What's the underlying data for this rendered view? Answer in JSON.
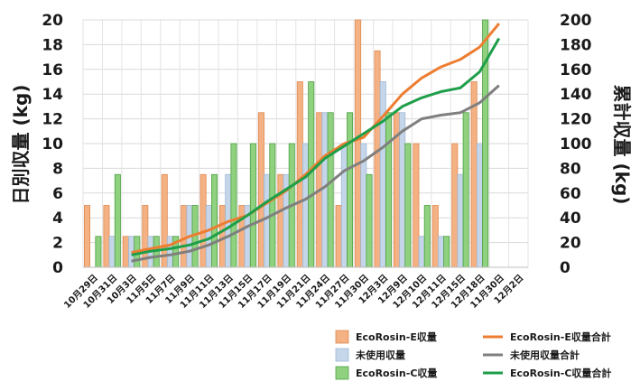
{
  "chart_data": {
    "type": "bar",
    "categories": [
      "10月29日",
      "10月31日",
      "10月3日",
      "11月5日",
      "11月7日",
      "11月9日",
      "11月11日",
      "11月13日",
      "11月15日",
      "11月17日",
      "11月19日",
      "11月21日",
      "11月24日",
      "11月27日",
      "11月30日",
      "12月3日",
      "12月9日",
      "12月10日",
      "12月11日",
      "12月15日",
      "12月18日",
      "11月30日",
      "12月2日"
    ],
    "ylabel": "日別収量 (kg)",
    "y2label": "累計収量 (kg)",
    "ylim": [
      0,
      20
    ],
    "y2lim": [
      0,
      200
    ],
    "yticks": [
      "0",
      "2",
      "4",
      "6",
      "8",
      "10",
      "12",
      "14",
      "16",
      "18",
      "20"
    ],
    "y2ticks": [
      "0",
      "20",
      "40",
      "60",
      "80",
      "100",
      "120",
      "140",
      "160",
      "180",
      "200"
    ],
    "grid": true,
    "legend_position": "bottom-right",
    "bar_series": [
      {
        "name": "EcoRosin-E収量",
        "color": "#f4b183",
        "edge": "#e08a50",
        "values": [
          5,
          5,
          2.5,
          5,
          7.5,
          5,
          7.5,
          5,
          5,
          12.5,
          7.5,
          15,
          12.5,
          5,
          20,
          17.5,
          12.5,
          10,
          5,
          10,
          15,
          0,
          0
        ]
      },
      {
        "name": "未使用収量",
        "color": "#c5d6ea",
        "edge": "#9fb7d3",
        "values": [
          0,
          2.5,
          2.5,
          2.5,
          2.5,
          5,
          5,
          7.5,
          5,
          7.5,
          7.5,
          10,
          12.5,
          10,
          10,
          15,
          12.5,
          2.5,
          2.5,
          7.5,
          10,
          0,
          0
        ]
      },
      {
        "name": "EcoRosin-C収量",
        "color": "#8fd17f",
        "edge": "#4fa043",
        "values": [
          2.5,
          7.5,
          2.5,
          2.5,
          2.5,
          5,
          7.5,
          10,
          10,
          10,
          10,
          15,
          12.5,
          12.5,
          7.5,
          12.5,
          10,
          5,
          2.5,
          12.5,
          20,
          0,
          0
        ]
      }
    ],
    "line_series": [
      {
        "name": "EcoRosin-E収量合計",
        "color": "#ed7d31",
        "values": [
          null,
          null,
          12,
          15,
          18,
          25,
          30,
          37,
          42,
          52,
          62,
          75,
          90,
          100,
          105,
          122,
          140,
          153,
          162,
          168,
          178,
          197,
          null
        ]
      },
      {
        "name": "未使用収量合計",
        "color": "#7f7f7f",
        "values": [
          null,
          null,
          5,
          8,
          10,
          13,
          18,
          25,
          33,
          40,
          48,
          55,
          65,
          78,
          86,
          97,
          110,
          120,
          123,
          125,
          133,
          147,
          null
        ]
      },
      {
        "name": "EcoRosin-C収量合計",
        "color": "#1f9e4a",
        "values": [
          null,
          null,
          10,
          13,
          15,
          18,
          23,
          32,
          42,
          53,
          63,
          73,
          88,
          98,
          108,
          118,
          130,
          137,
          142,
          145,
          158,
          185,
          null
        ]
      }
    ]
  }
}
